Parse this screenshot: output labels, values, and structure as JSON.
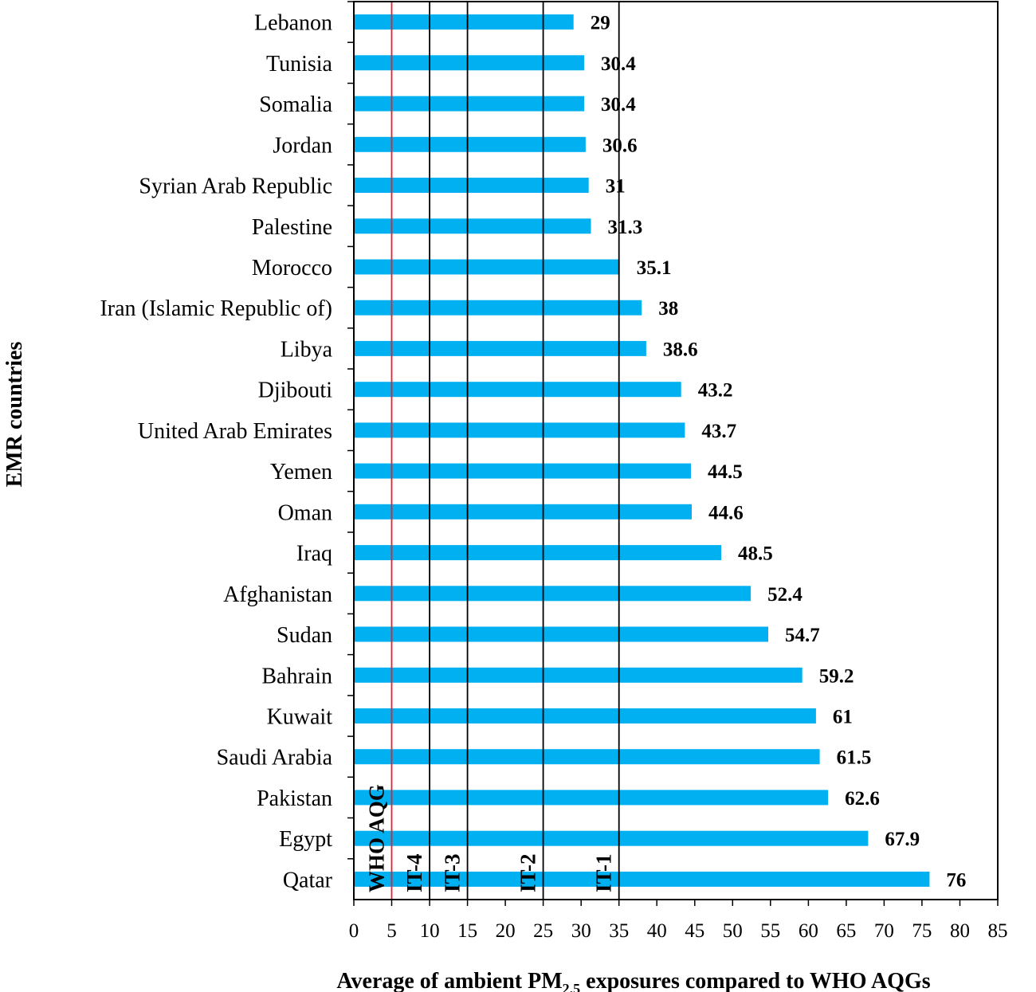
{
  "chart_data": {
    "type": "bar",
    "orientation": "horizontal",
    "categories": [
      "Lebanon",
      "Tunisia",
      "Somalia",
      "Jordan",
      "Syrian Arab Republic",
      "Palestine",
      "Morocco",
      "Iran (Islamic Republic of)",
      "Libya",
      "Djibouti",
      "United Arab Emirates",
      "Yemen",
      "Oman",
      "Iraq",
      "Afghanistan",
      "Sudan",
      "Bahrain",
      "Kuwait",
      "Saudi Arabia",
      "Pakistan",
      "Egypt",
      "Qatar"
    ],
    "values": [
      29,
      30.4,
      30.4,
      30.6,
      31,
      31.3,
      35.1,
      38,
      38.6,
      43.2,
      43.7,
      44.5,
      44.6,
      48.5,
      52.4,
      54.7,
      59.2,
      61,
      61.5,
      62.6,
      67.9,
      76
    ],
    "value_labels": [
      "29",
      "30.4",
      "30.4",
      "30.6",
      "31",
      "31.3",
      "35.1",
      "38",
      "38.6",
      "43.2",
      "43.7",
      "44.5",
      "44.6",
      "48.5",
      "52.4",
      "54.7",
      "59.2",
      "61",
      "61.5",
      "62.6",
      "67.9",
      "76"
    ],
    "xlim": [
      0,
      85
    ],
    "xticks": [
      0,
      5,
      10,
      15,
      20,
      25,
      30,
      35,
      40,
      45,
      50,
      55,
      60,
      65,
      70,
      75,
      80,
      85
    ],
    "ylabel": "EMR countries",
    "xlabel_prefix": "Average of ambient  PM",
    "xlabel_subscript": "2.5",
    "xlabel_suffix": " exposures compared to WHO AQGs",
    "reference_lines": [
      {
        "value": 5,
        "label": "WHO AQG",
        "color": "#e8202a"
      },
      {
        "value": 10,
        "label": "IT-4",
        "color": "#000000"
      },
      {
        "value": 15,
        "label": "IT-3",
        "color": "#000000"
      },
      {
        "value": 25,
        "label": "IT-2",
        "color": "#000000"
      },
      {
        "value": 35,
        "label": "IT-1",
        "color": "#000000"
      }
    ],
    "bar_color": "#00b0f0",
    "grid": false
  }
}
